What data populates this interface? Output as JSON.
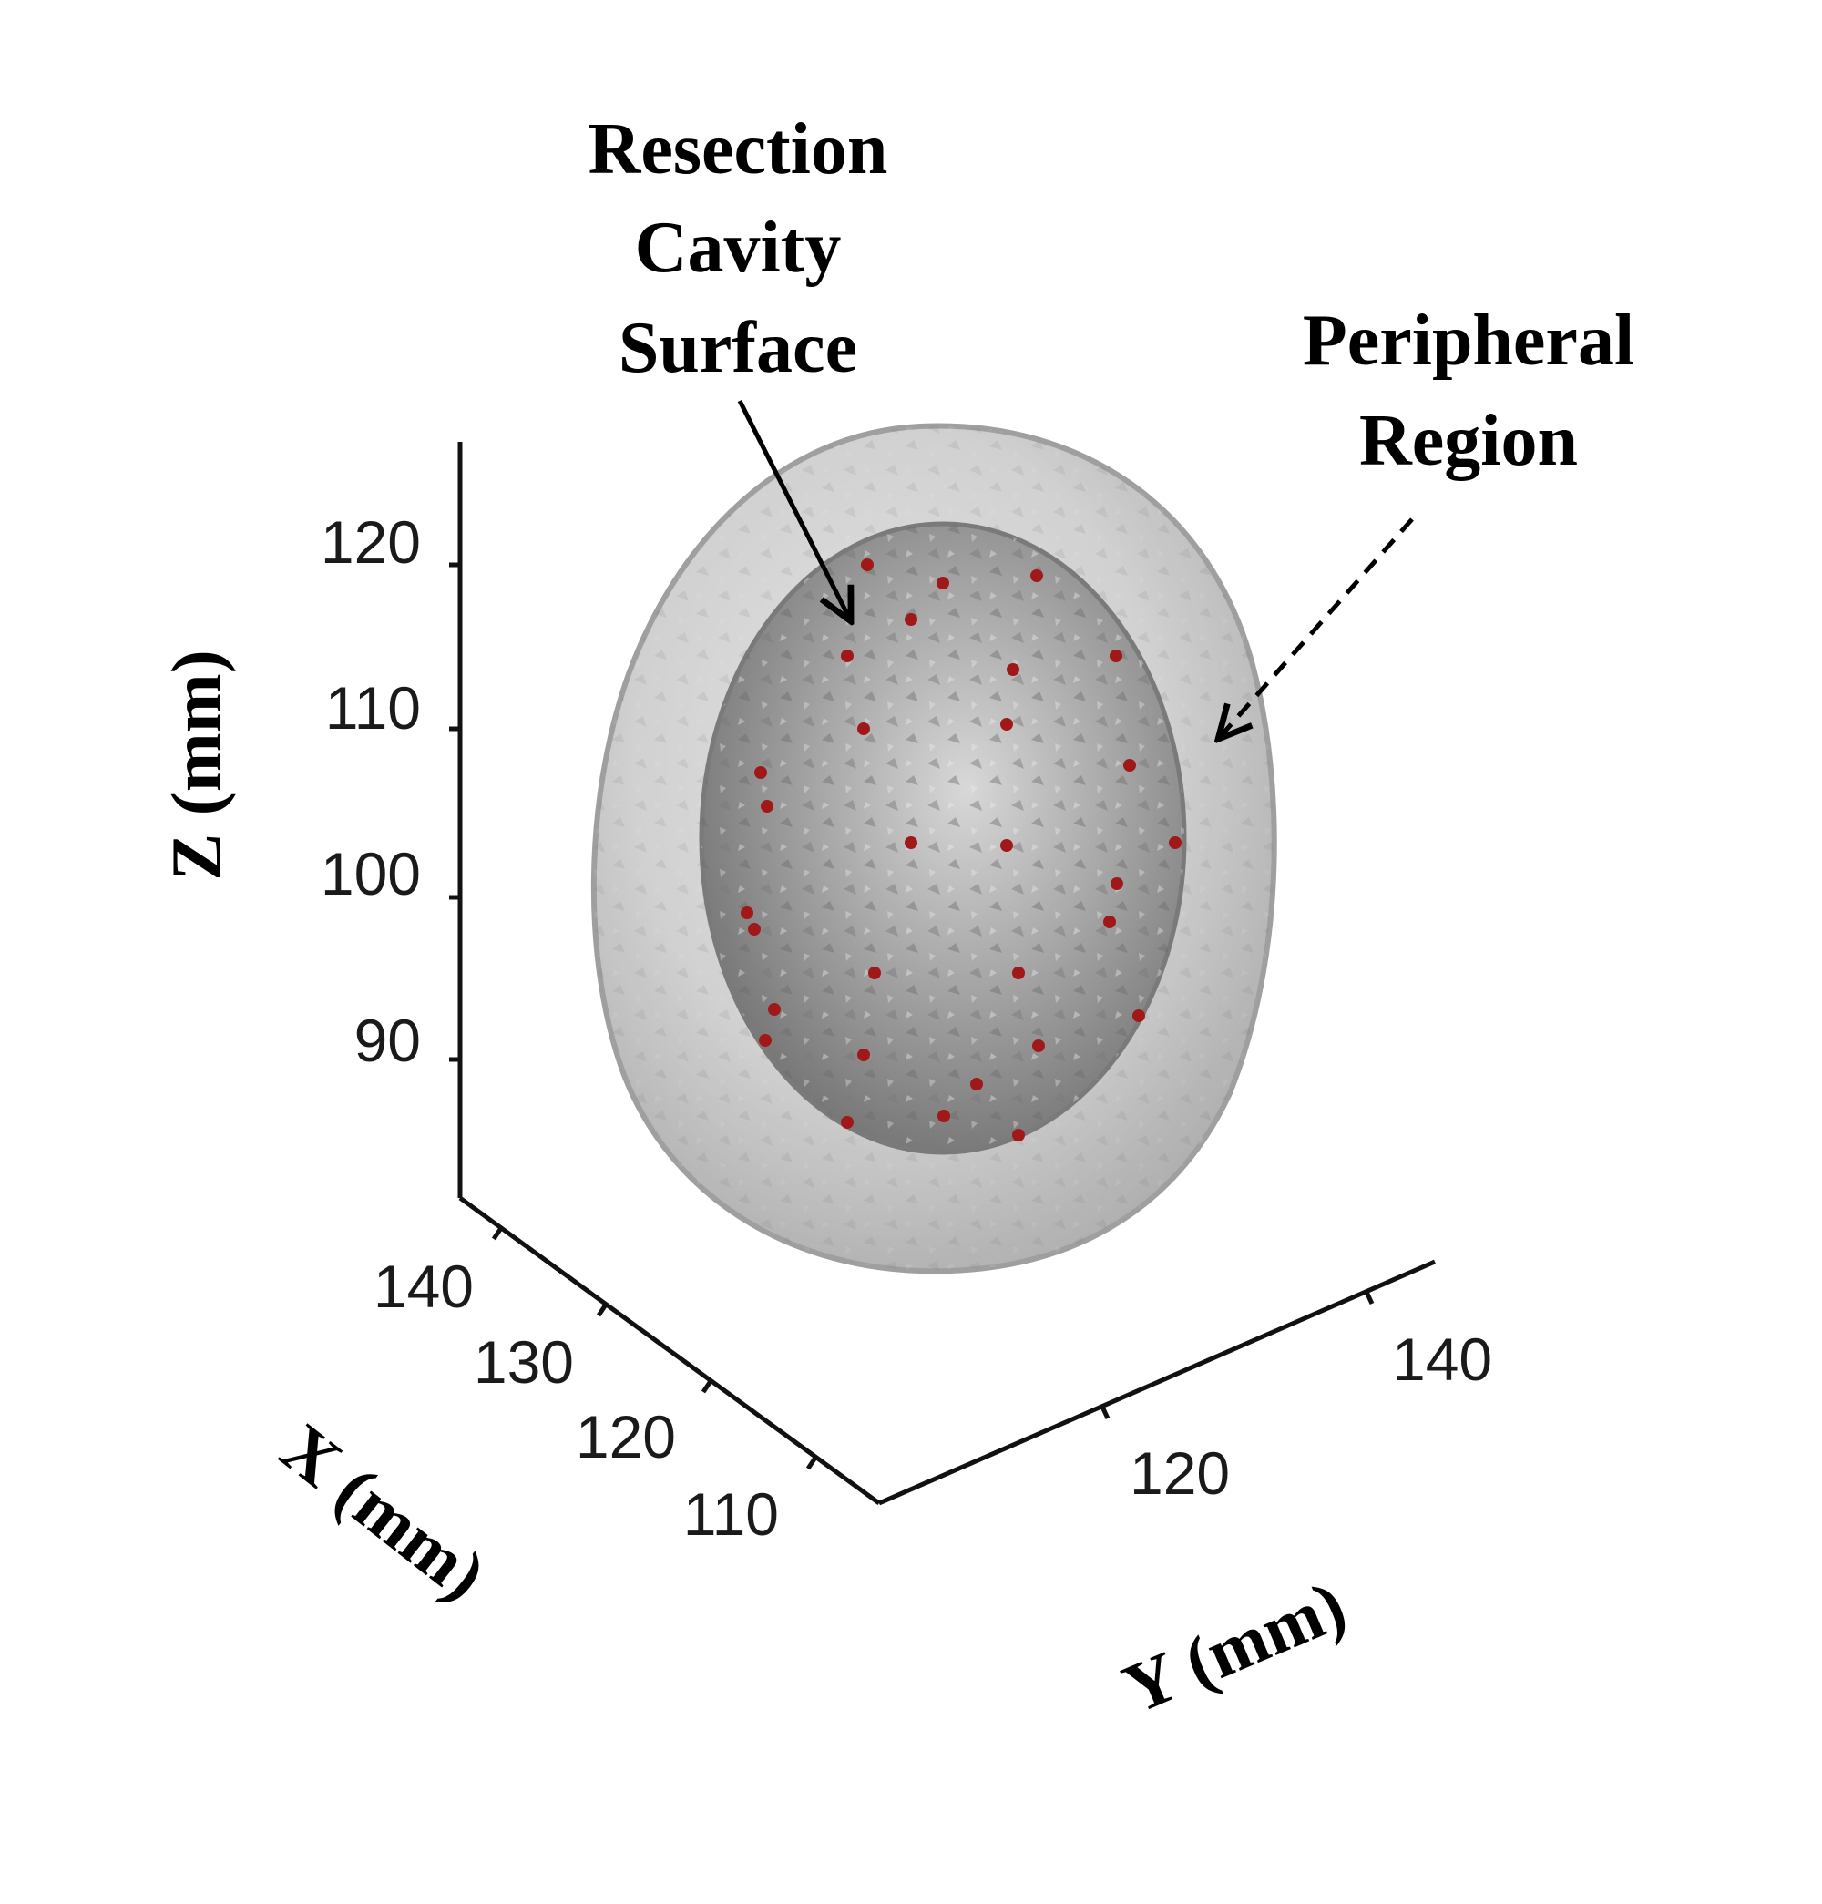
{
  "annotations": {
    "cavity_lines": [
      "Resection",
      "Cavity",
      "Surface"
    ],
    "peripheral_lines": [
      "Peripheral",
      "Region"
    ]
  },
  "axes": {
    "z": {
      "label": "Z (mm)",
      "ticks": [
        "120",
        "110",
        "100",
        "90"
      ]
    },
    "x": {
      "label": "X (mm)",
      "ticks": [
        "140",
        "130",
        "120",
        "110"
      ]
    },
    "y": {
      "label": "Y (mm)",
      "ticks": [
        "120",
        "140"
      ]
    }
  },
  "colors": {
    "outer_region": "#c9c9c9",
    "inner_cavity": "#8f8f8f",
    "sample_points": "#a01818",
    "axes": "#111111"
  }
}
